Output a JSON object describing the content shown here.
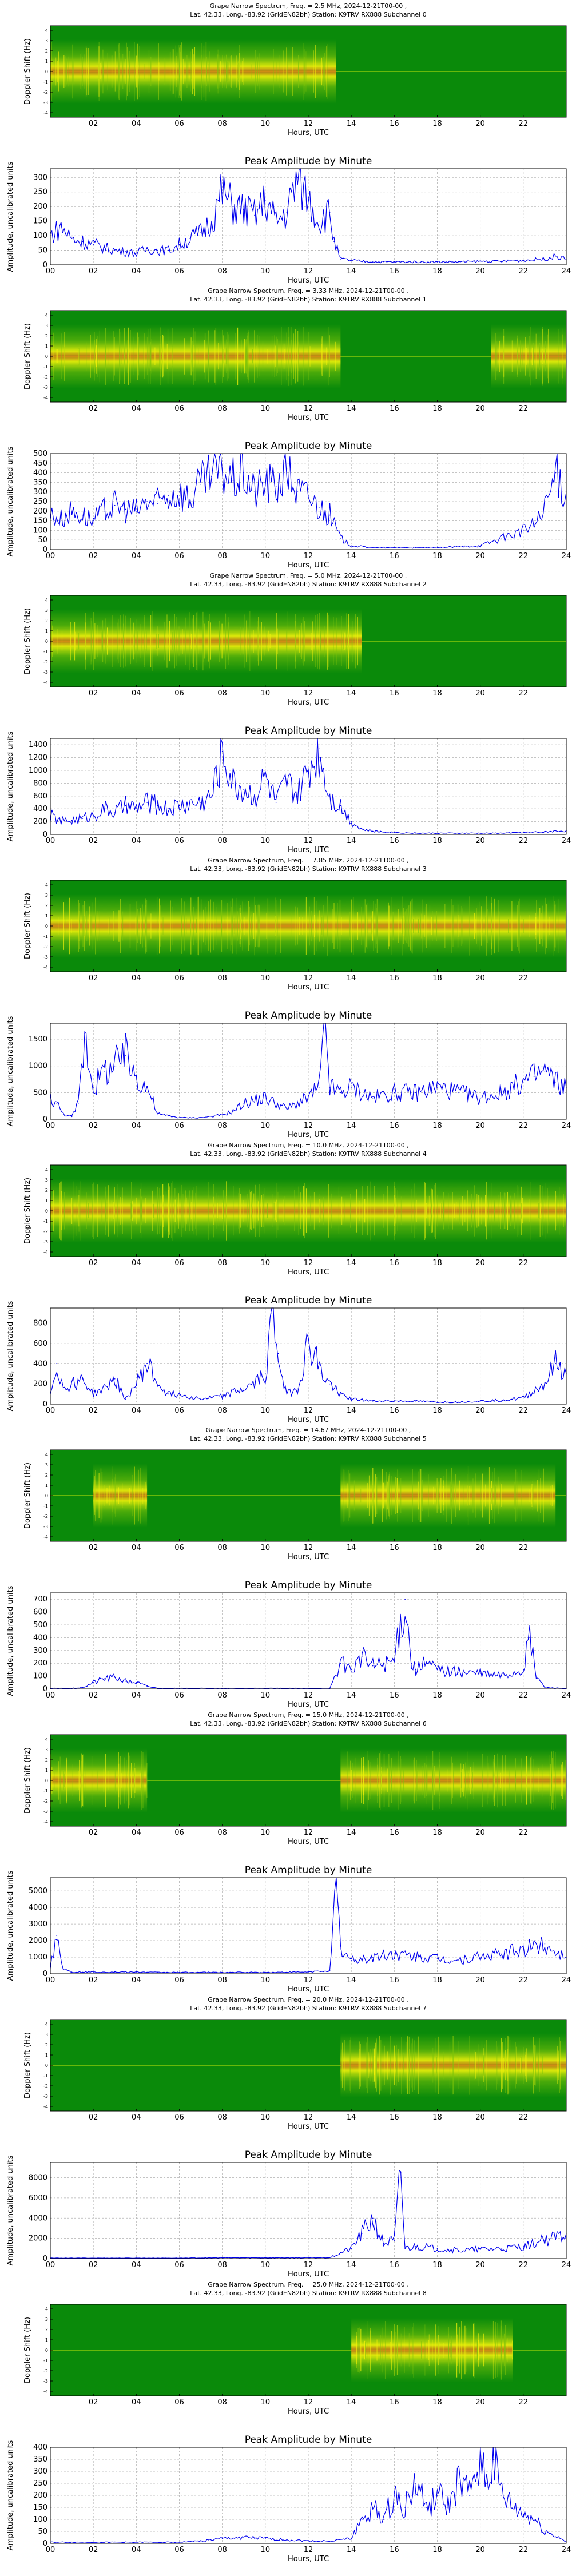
{
  "colors": {
    "spec_bg": "#0a8a0a",
    "spec_mid": "#7ec40a",
    "spec_hot": "#f2f20a",
    "spec_core": "#f07818",
    "trace": "#0000ee",
    "grid": "#b0b0b0"
  },
  "common": {
    "spec_ylabel": "Doppler Shift (Hz)",
    "spec_xlabel": "Hours, UTC",
    "spec_xticks": [
      "02",
      "04",
      "06",
      "08",
      "10",
      "12",
      "14",
      "16",
      "18",
      "20",
      "22"
    ],
    "spec_yticks": [
      "4",
      "3",
      "2",
      "1",
      "0",
      "-1",
      "-2",
      "-3",
      "-4"
    ],
    "amp_title": "Peak Amplitude by Minute",
    "amp_ylabel": "Amplitude, uncalibrated units",
    "amp_xlabel": "Hours, UTC",
    "amp_xticks": [
      "00",
      "02",
      "04",
      "06",
      "08",
      "10",
      "12",
      "14",
      "16",
      "18",
      "20",
      "22",
      "24"
    ]
  },
  "chart_data": [
    {
      "type": "heatmap",
      "title_line1": "Grape Narrow Spectrum, Freq. = 2.5 MHz, 2024-12-21T00-00 ,",
      "title_line2": "Lat.  42.33, Long. -83.92 (GridEN82bh) Station: K9TRV RX888 Subchannel 0",
      "xlabel": "Hours, UTC",
      "ylabel": "Doppler Shift (Hz)",
      "x_range_hours": [
        0,
        24
      ],
      "y_range_hz": [
        -4.5,
        4.5
      ],
      "activity_intervals_hours": [
        [
          0,
          13.3
        ]
      ]
    },
    {
      "type": "line",
      "title": "Peak Amplitude by Minute",
      "xlabel": "Hours, UTC",
      "ylabel": "Amplitude, uncalibrated units",
      "xlim": [
        0,
        24
      ],
      "ylim": [
        0,
        330
      ],
      "yticks": [
        "0",
        "50",
        "100",
        "150",
        "200",
        "250",
        "300"
      ],
      "grid": true,
      "x": [
        0,
        0.5,
        1,
        1.5,
        2,
        2.5,
        3,
        3.5,
        4,
        4.5,
        5,
        5.5,
        6,
        6.5,
        7,
        7.5,
        8,
        8.5,
        9,
        9.5,
        10,
        10.5,
        11,
        11.5,
        12,
        12.5,
        13,
        13.2,
        13.5,
        14,
        15,
        16,
        17,
        18,
        19,
        20,
        21,
        22,
        23,
        23.5,
        24
      ],
      "y": [
        100,
        130,
        90,
        80,
        70,
        60,
        50,
        45,
        40,
        55,
        50,
        50,
        70,
        90,
        110,
        150,
        250,
        200,
        190,
        170,
        220,
        150,
        180,
        300,
        230,
        150,
        180,
        80,
        20,
        15,
        10,
        10,
        10,
        10,
        10,
        12,
        12,
        15,
        20,
        30,
        20
      ]
    },
    {
      "type": "heatmap",
      "title_line1": "Grape Narrow Spectrum, Freq. = 3.33 MHz, 2024-12-21T00-00 ,",
      "title_line2": "Lat.  42.33, Long. -83.92 (GridEN82bh) Station: K9TRV RX888 Subchannel 1",
      "xlabel": "Hours, UTC",
      "ylabel": "Doppler Shift (Hz)",
      "x_range_hours": [
        0,
        24
      ],
      "y_range_hz": [
        -4.5,
        4.5
      ],
      "activity_intervals_hours": [
        [
          0,
          13.5
        ],
        [
          20.5,
          24
        ]
      ]
    },
    {
      "type": "line",
      "title": "Peak Amplitude by Minute",
      "xlabel": "Hours, UTC",
      "ylabel": "Amplitude, uncalibrated units",
      "xlim": [
        0,
        24
      ],
      "ylim": [
        0,
        500
      ],
      "yticks": [
        "0",
        "50",
        "100",
        "150",
        "200",
        "250",
        "300",
        "350",
        "400",
        "450",
        "500"
      ],
      "grid": true,
      "x": [
        0,
        0.5,
        1,
        1.5,
        2,
        2.5,
        3,
        3.5,
        4,
        4.5,
        5,
        5.5,
        6,
        6.5,
        7,
        7.5,
        8,
        8.5,
        9,
        9.5,
        10,
        10.5,
        11,
        11.5,
        12,
        12.5,
        13,
        13.5,
        14,
        15,
        16,
        17,
        18,
        19,
        20,
        21,
        22,
        22.5,
        23,
        23.5,
        24
      ],
      "y": [
        180,
        160,
        200,
        180,
        150,
        200,
        230,
        210,
        200,
        250,
        240,
        280,
        300,
        260,
        340,
        380,
        420,
        360,
        400,
        300,
        350,
        330,
        420,
        300,
        280,
        220,
        180,
        60,
        20,
        10,
        10,
        10,
        10,
        15,
        20,
        60,
        100,
        130,
        200,
        400,
        300
      ]
    },
    {
      "type": "heatmap",
      "title_line1": "Grape Narrow Spectrum, Freq. = 5.0 MHz, 2024-12-21T00-00 ,",
      "title_line2": "Lat.  42.33, Long. -83.92 (GridEN82bh) Station: K9TRV RX888 Subchannel 2",
      "xlabel": "Hours, UTC",
      "ylabel": "Doppler Shift (Hz)",
      "x_range_hours": [
        0,
        24
      ],
      "y_range_hz": [
        -4.5,
        4.5
      ],
      "activity_intervals_hours": [
        [
          0,
          14.5
        ]
      ]
    },
    {
      "type": "line",
      "title": "Peak Amplitude by Minute",
      "xlabel": "Hours, UTC",
      "ylabel": "Amplitude, uncalibrated units",
      "xlim": [
        0,
        24
      ],
      "ylim": [
        0,
        1500
      ],
      "yticks": [
        "0",
        "200",
        "400",
        "600",
        "800",
        "1000",
        "1200",
        "1400"
      ],
      "grid": true,
      "x": [
        0,
        0.5,
        1,
        1.5,
        2,
        2.5,
        3,
        3.5,
        4,
        4.5,
        5,
        5.5,
        6,
        6.5,
        7,
        7.5,
        8,
        8.5,
        9,
        9.5,
        10,
        10.5,
        11,
        11.5,
        12,
        12.5,
        13,
        13.5,
        14,
        14.5,
        15,
        16,
        17,
        18,
        19,
        20,
        21,
        22,
        23,
        24
      ],
      "y": [
        300,
        200,
        220,
        250,
        300,
        400,
        350,
        450,
        400,
        500,
        450,
        400,
        450,
        480,
        500,
        600,
        1300,
        800,
        700,
        600,
        900,
        500,
        800,
        600,
        1000,
        1350,
        600,
        450,
        200,
        80,
        50,
        30,
        20,
        20,
        20,
        20,
        20,
        30,
        40,
        60
      ]
    },
    {
      "type": "heatmap",
      "title_line1": "Grape Narrow Spectrum, Freq. = 7.85 MHz, 2024-12-21T00-00 ,",
      "title_line2": "Lat.  42.33, Long. -83.92 (GridEN82bh) Station: K9TRV RX888 Subchannel 3",
      "xlabel": "Hours, UTC",
      "ylabel": "Doppler Shift (Hz)",
      "x_range_hours": [
        0,
        24
      ],
      "y_range_hz": [
        -4.5,
        4.5
      ],
      "activity_intervals_hours": [
        [
          0,
          24
        ]
      ]
    },
    {
      "type": "line",
      "title": "Peak Amplitude by Minute",
      "xlabel": "Hours, UTC",
      "ylabel": "Amplitude, uncalibrated units",
      "xlim": [
        0,
        24
      ],
      "ylim": [
        0,
        1800
      ],
      "yticks": [
        "0",
        "500",
        "1000",
        "1500"
      ],
      "grid": true,
      "x": [
        0,
        0.3,
        0.6,
        1,
        1.3,
        1.6,
        2,
        2.5,
        3,
        3.5,
        4,
        4.5,
        5,
        6,
        7,
        8,
        8.5,
        9,
        10,
        11,
        12,
        12.5,
        12.8,
        13,
        13.5,
        14,
        15,
        16,
        17,
        18,
        19,
        20,
        21,
        22,
        22.5,
        23,
        23.5,
        24
      ],
      "y": [
        400,
        300,
        100,
        50,
        300,
        1600,
        600,
        900,
        1000,
        1200,
        800,
        600,
        100,
        30,
        30,
        80,
        150,
        300,
        400,
        200,
        400,
        600,
        1800,
        600,
        500,
        600,
        400,
        500,
        500,
        600,
        500,
        400,
        500,
        700,
        800,
        900,
        700,
        600
      ]
    },
    {
      "type": "heatmap",
      "title_line1": "Grape Narrow Spectrum, Freq. = 10.0 MHz, 2024-12-21T00-00 ,",
      "title_line2": "Lat.  42.33, Long. -83.92 (GridEN82bh) Station: K9TRV RX888 Subchannel 4",
      "xlabel": "Hours, UTC",
      "ylabel": "Doppler Shift (Hz)",
      "x_range_hours": [
        0,
        24
      ],
      "y_range_hz": [
        -4.5,
        4.5
      ],
      "activity_intervals_hours": [
        [
          0,
          24
        ]
      ]
    },
    {
      "type": "line",
      "title": "Peak Amplitude by Minute",
      "xlabel": "Hours, UTC",
      "ylabel": "Amplitude, uncalibrated units",
      "xlim": [
        0,
        24
      ],
      "ylim": [
        0,
        950
      ],
      "yticks": [
        "0",
        "200",
        "400",
        "600",
        "800"
      ],
      "grid": true,
      "x": [
        0,
        0.3,
        0.6,
        1,
        1.5,
        2,
        2.5,
        3,
        3.5,
        4,
        4.5,
        5,
        5.5,
        6,
        7,
        8,
        9,
        9.5,
        10,
        10.3,
        10.6,
        11,
        11.5,
        12,
        12.3,
        12.6,
        13,
        13.5,
        14,
        15,
        16,
        17,
        18,
        19,
        20,
        21,
        22,
        23,
        23.5,
        24
      ],
      "y": [
        100,
        400,
        150,
        200,
        250,
        100,
        150,
        250,
        50,
        200,
        400,
        200,
        100,
        100,
        50,
        80,
        150,
        200,
        300,
        900,
        500,
        100,
        150,
        600,
        500,
        300,
        200,
        100,
        50,
        30,
        30,
        30,
        20,
        20,
        30,
        40,
        60,
        200,
        400,
        300
      ]
    },
    {
      "type": "heatmap",
      "title_line1": "Grape Narrow Spectrum, Freq. = 14.67 MHz, 2024-12-21T00-00 ,",
      "title_line2": "Lat.  42.33, Long. -83.92 (GridEN82bh) Station: K9TRV RX888 Subchannel 5",
      "xlabel": "Hours, UTC",
      "ylabel": "Doppler Shift (Hz)",
      "x_range_hours": [
        0,
        24
      ],
      "y_range_hz": [
        -4.5,
        4.5
      ],
      "activity_intervals_hours": [
        [
          2,
          4.5
        ],
        [
          13.5,
          23.5
        ]
      ]
    },
    {
      "type": "line",
      "title": "Peak Amplitude by Minute",
      "xlabel": "Hours, UTC",
      "ylabel": "Amplitude, uncalibrated units",
      "xlim": [
        0,
        24
      ],
      "ylim": [
        0,
        750
      ],
      "yticks": [
        "0",
        "100",
        "200",
        "300",
        "400",
        "500",
        "600",
        "700"
      ],
      "grid": true,
      "x": [
        0,
        1,
        1.5,
        2,
        2.5,
        3,
        3.5,
        4,
        4.5,
        5,
        6,
        8,
        10,
        12,
        13,
        13.5,
        14,
        14.5,
        15,
        15.5,
        16,
        16.5,
        16.8,
        17,
        17.5,
        18,
        19,
        20,
        21,
        22,
        22.3,
        22.6,
        23,
        24
      ],
      "y": [
        5,
        5,
        10,
        50,
        80,
        90,
        60,
        50,
        20,
        5,
        5,
        5,
        5,
        5,
        5,
        200,
        150,
        250,
        180,
        200,
        220,
        700,
        200,
        150,
        200,
        150,
        130,
        120,
        100,
        150,
        400,
        100,
        10,
        5
      ]
    },
    {
      "type": "heatmap",
      "title_line1": "Grape Narrow Spectrum, Freq. = 15.0 MHz, 2024-12-21T00-00 ,",
      "title_line2": "Lat.  42.33, Long. -83.92 (GridEN82bh) Station: K9TRV RX888 Subchannel 6",
      "xlabel": "Hours, UTC",
      "ylabel": "Doppler Shift (Hz)",
      "x_range_hours": [
        0,
        24
      ],
      "y_range_hz": [
        -4.5,
        4.5
      ],
      "activity_intervals_hours": [
        [
          0,
          4.5
        ],
        [
          13.5,
          24
        ]
      ]
    },
    {
      "type": "line",
      "title": "Peak Amplitude by Minute",
      "xlabel": "Hours, UTC",
      "ylabel": "Amplitude, uncalibrated units",
      "xlim": [
        0,
        24
      ],
      "ylim": [
        0,
        5800
      ],
      "yticks": [
        "0",
        "1000",
        "2000",
        "3000",
        "4000",
        "5000"
      ],
      "grid": true,
      "x": [
        0,
        0.3,
        0.6,
        1,
        2,
        3,
        4,
        5,
        6,
        8,
        10,
        12,
        13,
        13.3,
        13.5,
        14,
        15,
        16,
        17,
        18,
        19,
        20,
        21,
        22,
        23,
        24
      ],
      "y": [
        500,
        2300,
        300,
        100,
        100,
        100,
        100,
        80,
        80,
        80,
        80,
        100,
        200,
        5300,
        1500,
        800,
        1000,
        1200,
        1000,
        900,
        800,
        1000,
        1200,
        1500,
        1800,
        1000
      ]
    },
    {
      "type": "heatmap",
      "title_line1": "Grape Narrow Spectrum, Freq. = 20.0 MHz, 2024-12-21T00-00 ,",
      "title_line2": "Lat.  42.33, Long. -83.92 (GridEN82bh) Station: K9TRV RX888 Subchannel 7",
      "xlabel": "Hours, UTC",
      "ylabel": "Doppler Shift (Hz)",
      "x_range_hours": [
        0,
        24
      ],
      "y_range_hz": [
        -4.5,
        4.5
      ],
      "activity_intervals_hours": [
        [
          13.5,
          24
        ]
      ]
    },
    {
      "type": "line",
      "title": "Peak Amplitude by Minute",
      "xlabel": "Hours, UTC",
      "ylabel": "Amplitude, uncalibrated units",
      "xlim": [
        0,
        24
      ],
      "ylim": [
        0,
        9500
      ],
      "yticks": [
        "0",
        "2000",
        "4000",
        "6000",
        "8000"
      ],
      "grid": true,
      "x": [
        0,
        2,
        4,
        6,
        8,
        10,
        12,
        13,
        14,
        14.5,
        15,
        15.5,
        16,
        16.3,
        16.5,
        17,
        18,
        19,
        20,
        21,
        22,
        23,
        24
      ],
      "y": [
        50,
        50,
        50,
        50,
        80,
        80,
        80,
        100,
        1000,
        2500,
        4000,
        1500,
        1800,
        8500,
        1000,
        1200,
        1000,
        800,
        900,
        1000,
        1200,
        1800,
        2500
      ]
    },
    {
      "type": "heatmap",
      "title_line1": "Grape Narrow Spectrum, Freq. = 25.0 MHz, 2024-12-21T00-00 ,",
      "title_line2": "Lat.  42.33, Long. -83.92 (GridEN82bh) Station: K9TRV RX888 Subchannel 8",
      "xlabel": "Hours, UTC",
      "ylabel": "Doppler Shift (Hz)",
      "x_range_hours": [
        0,
        24
      ],
      "y_range_hz": [
        -4.5,
        4.5
      ],
      "activity_intervals_hours": [
        [
          14,
          21.5
        ]
      ]
    },
    {
      "type": "line",
      "title": "Peak Amplitude by Minute",
      "xlabel": "Hours, UTC",
      "ylabel": "Amplitude, uncalibrated units",
      "xlim": [
        0,
        24
      ],
      "ylim": [
        0,
        400
      ],
      "yticks": [
        "0",
        "50",
        "100",
        "150",
        "200",
        "250",
        "300",
        "350",
        "400"
      ],
      "grid": true,
      "x": [
        0,
        2,
        4,
        6,
        7,
        8,
        9,
        10,
        12,
        13,
        14,
        14.5,
        15,
        15.5,
        16,
        16.5,
        17,
        17.5,
        18,
        18.5,
        19,
        19.5,
        20,
        20.3,
        20.6,
        21,
        21.5,
        22,
        22.5,
        23,
        24
      ],
      "y": [
        5,
        5,
        5,
        5,
        10,
        20,
        25,
        20,
        10,
        10,
        20,
        100,
        150,
        100,
        200,
        150,
        250,
        150,
        200,
        150,
        250,
        200,
        380,
        250,
        350,
        200,
        150,
        120,
        100,
        50,
        10
      ]
    }
  ]
}
